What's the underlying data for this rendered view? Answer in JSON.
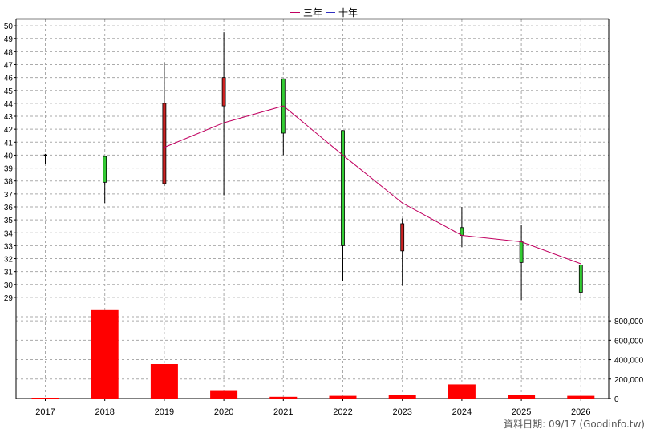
{
  "legend": [
    {
      "label": "三年",
      "color": "#c00060"
    },
    {
      "label": "十年",
      "color": "#3030c0"
    }
  ],
  "footer_text": "資料日期: 09/17  (Goodinfo.tw)",
  "chart_data": [
    {
      "type": "candlestick",
      "title": "",
      "categories": [
        "2017",
        "2018",
        "2019",
        "2020",
        "2021",
        "2022",
        "2023",
        "2024",
        "2025",
        "2026"
      ],
      "ylim": [
        28.5,
        50.5
      ],
      "yticks": [
        29,
        30,
        31,
        32,
        33,
        34,
        35,
        36,
        37,
        38,
        39,
        40,
        41,
        42,
        43,
        44,
        45,
        46,
        47,
        48,
        49,
        50
      ],
      "grid": true,
      "candles": [
        {
          "open": 40.0,
          "close": 40.0,
          "high": 40.1,
          "low": 39.3,
          "color": "#000000"
        },
        {
          "open": 37.9,
          "close": 39.9,
          "high": 39.9,
          "low": 36.3,
          "color": "#33cc33"
        },
        {
          "open": 44.0,
          "close": 37.8,
          "high": 47.2,
          "low": 37.6,
          "color": "#cc2222"
        },
        {
          "open": 46.0,
          "close": 43.8,
          "high": 49.5,
          "low": 36.9,
          "color": "#cc2222"
        },
        {
          "open": 41.7,
          "close": 45.9,
          "high": 45.9,
          "low": 40.0,
          "color": "#33cc33"
        },
        {
          "open": 33.0,
          "close": 41.9,
          "high": 41.9,
          "low": 30.3,
          "color": "#33cc33"
        },
        {
          "open": 34.7,
          "close": 32.6,
          "high": 35.1,
          "low": 29.9,
          "color": "#cc2222"
        },
        {
          "open": 33.8,
          "close": 34.4,
          "high": 36.0,
          "low": 32.9,
          "color": "#33cc33"
        },
        {
          "open": 31.7,
          "close": 33.3,
          "high": 34.6,
          "low": 28.8,
          "color": "#33cc33"
        },
        {
          "open": 29.4,
          "close": 31.5,
          "high": 31.5,
          "low": 28.8,
          "color": "#33cc33"
        }
      ],
      "series": [
        {
          "name": "三年",
          "color": "#c00060",
          "values": [
            null,
            null,
            40.6,
            42.5,
            43.8,
            40.0,
            36.3,
            33.8,
            33.3,
            31.6
          ]
        }
      ]
    },
    {
      "type": "bar",
      "title": "",
      "categories": [
        "2017",
        "2018",
        "2019",
        "2020",
        "2021",
        "2022",
        "2023",
        "2024",
        "2025",
        "2026"
      ],
      "values": [
        5000,
        920000,
        355000,
        78000,
        18000,
        28000,
        35000,
        145000,
        35000,
        28000
      ],
      "ylim": [
        0,
        900000
      ],
      "yticks": [
        0,
        200000,
        400000,
        600000,
        800000
      ],
      "ytick_labels": [
        "0",
        "200,000",
        "400,000",
        "600,000",
        "800,000"
      ],
      "color": "#ff0000",
      "grid": true
    }
  ]
}
